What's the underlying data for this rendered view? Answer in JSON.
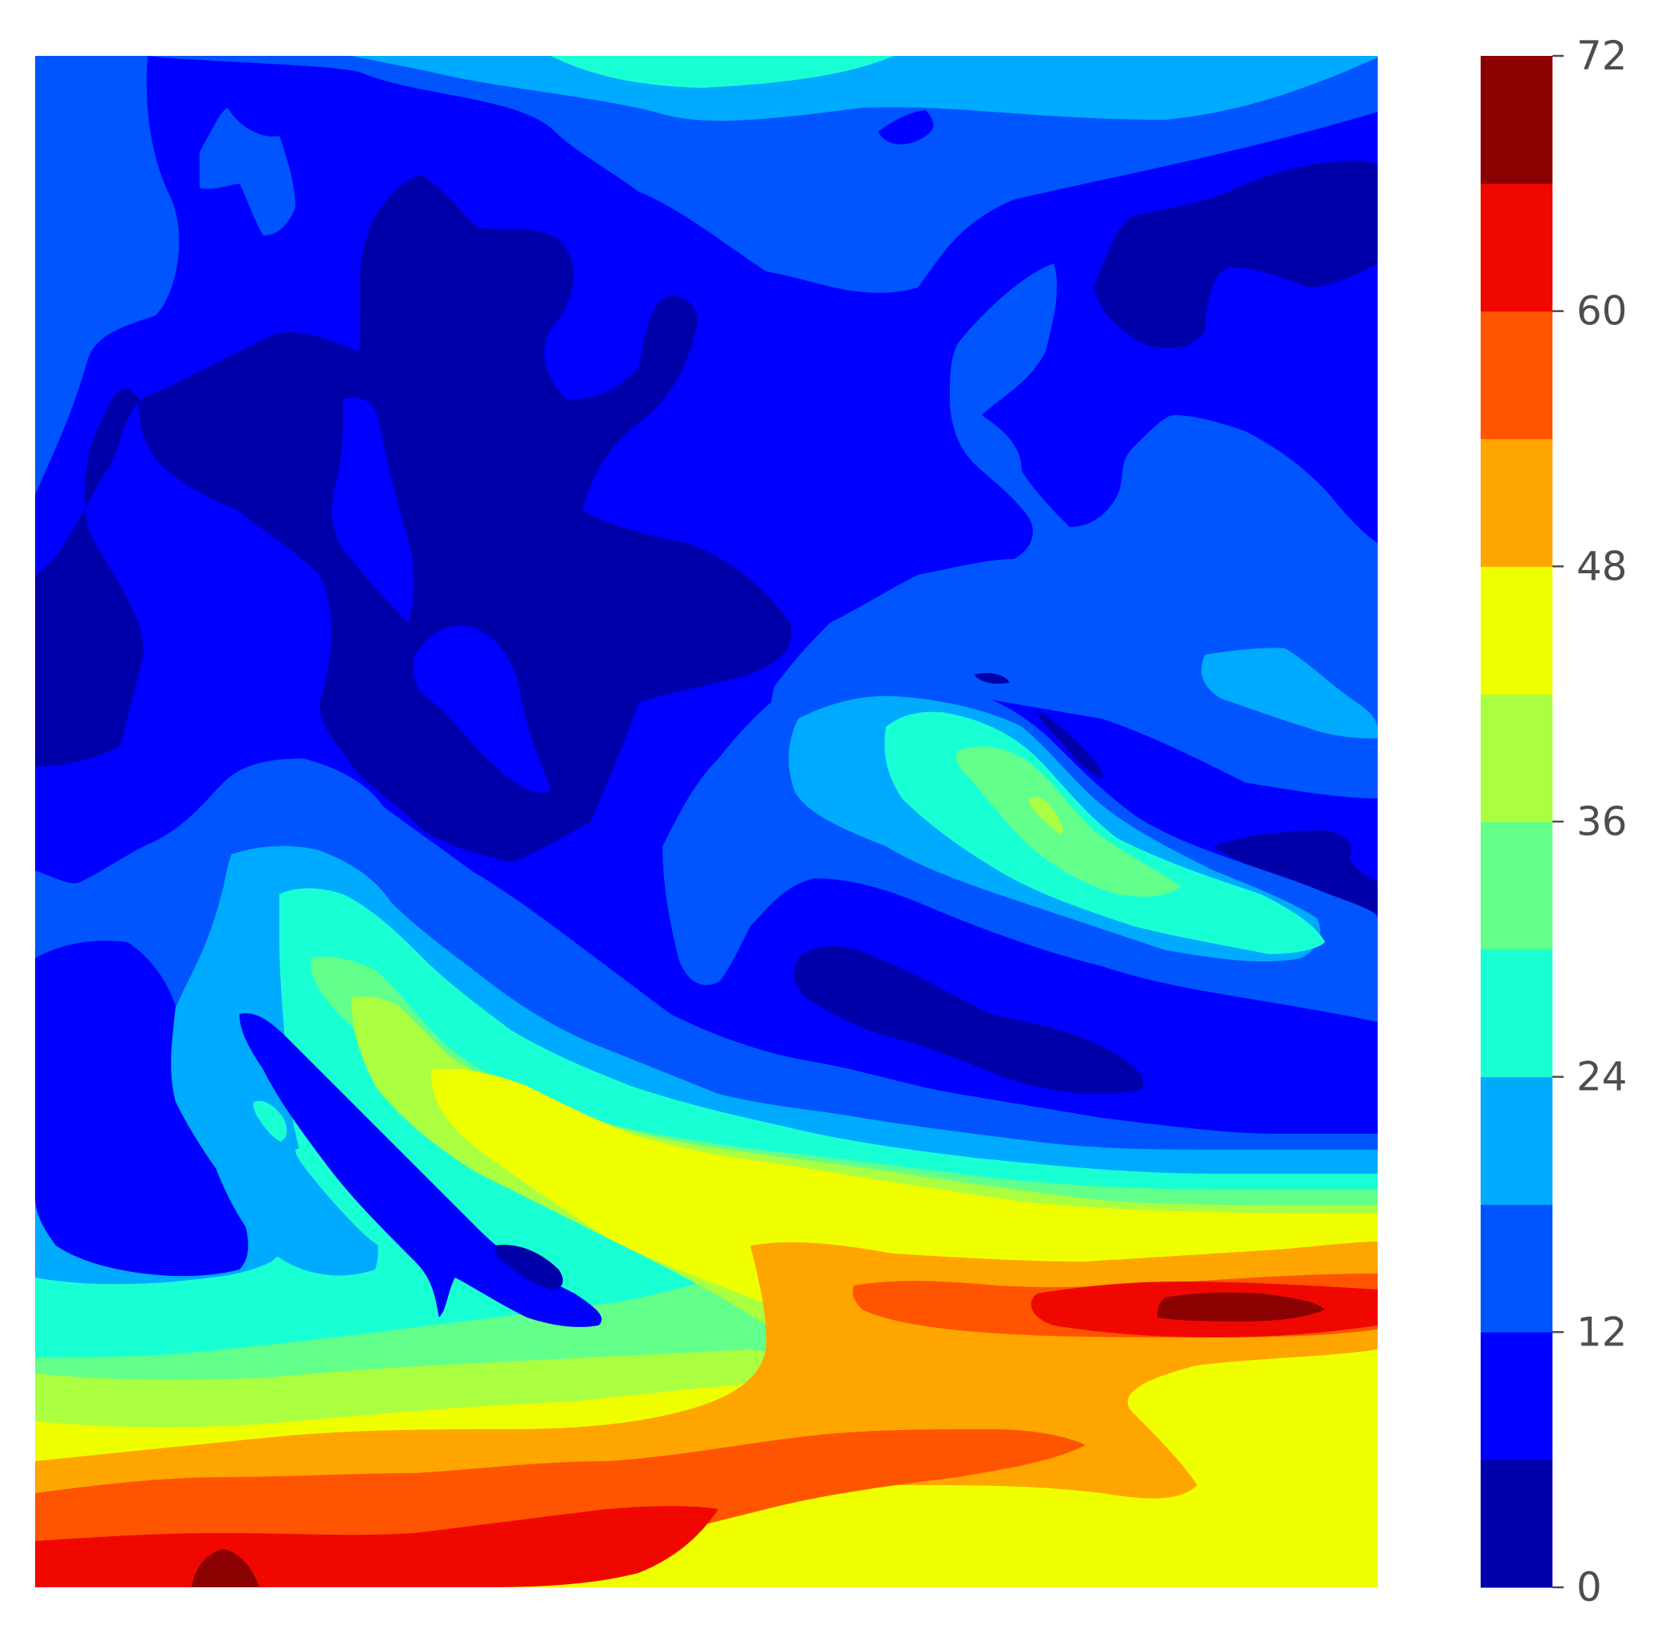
{
  "chart_data": {
    "type": "contourf",
    "title": "",
    "xlabel": "",
    "ylabel": "",
    "axes_visible": false,
    "grid": false,
    "colormap": "jet",
    "levels": [
      0,
      6,
      12,
      18,
      24,
      30,
      36,
      42,
      48,
      54,
      60,
      66,
      72
    ],
    "level_colors": [
      "#0000aa",
      "#0000ff",
      "#0055ff",
      "#00aaff",
      "#19ffd4",
      "#62ff8b",
      "#abff41",
      "#f0ff00",
      "#ffa500",
      "#ff5500",
      "#f00800",
      "#8b0000"
    ],
    "colorbar": {
      "position": "right",
      "ticks": [
        0,
        12,
        24,
        36,
        48,
        60,
        72
      ],
      "tick_labels": [
        "0",
        "12",
        "24",
        "36",
        "48",
        "60",
        "72"
      ]
    },
    "field_description_points": [
      {
        "region": "upper-left plateau",
        "value_range": [
          0,
          12
        ]
      },
      {
        "region": "central ridge",
        "value_range": [
          24,
          48
        ]
      },
      {
        "region": "right band",
        "value_range": [
          54,
          72
        ]
      },
      {
        "region": "bottom band",
        "value_range": [
          48,
          72
        ]
      }
    ]
  }
}
